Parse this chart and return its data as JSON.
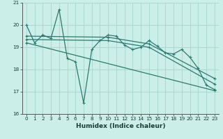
{
  "bg_color": "#cceee8",
  "grid_color": "#aad8d0",
  "line_color": "#2a7a6e",
  "xlabel": "Humidex (Indice chaleur)",
  "xlim": [
    -0.5,
    23.5
  ],
  "ylim": [
    16,
    21
  ],
  "yticks": [
    16,
    17,
    18,
    19,
    20,
    21
  ],
  "xticks": [
    0,
    1,
    2,
    3,
    4,
    5,
    6,
    7,
    8,
    9,
    10,
    11,
    12,
    13,
    14,
    15,
    16,
    17,
    18,
    19,
    20,
    21,
    22,
    23
  ],
  "series_main": {
    "x": [
      0,
      1,
      2,
      3,
      4,
      5,
      6,
      7,
      8,
      9,
      10,
      11,
      12,
      13,
      14,
      15,
      16,
      17,
      18,
      19,
      20,
      21,
      22,
      23
    ],
    "y": [
      20.0,
      19.2,
      19.55,
      19.4,
      20.7,
      18.5,
      18.35,
      16.5,
      18.9,
      19.3,
      19.55,
      19.5,
      19.1,
      18.9,
      19.0,
      19.3,
      19.05,
      18.75,
      18.7,
      18.9,
      18.55,
      18.05,
      17.3,
      17.1
    ]
  },
  "series_line1": {
    "x": [
      0,
      23
    ],
    "y": [
      19.2,
      17.05
    ]
  },
  "series_line2": {
    "x": [
      0,
      10,
      15,
      23
    ],
    "y": [
      19.35,
      19.3,
      19.0,
      17.35
    ]
  },
  "series_line3": {
    "x": [
      0,
      10,
      15,
      23
    ],
    "y": [
      19.5,
      19.45,
      19.15,
      17.6
    ]
  }
}
